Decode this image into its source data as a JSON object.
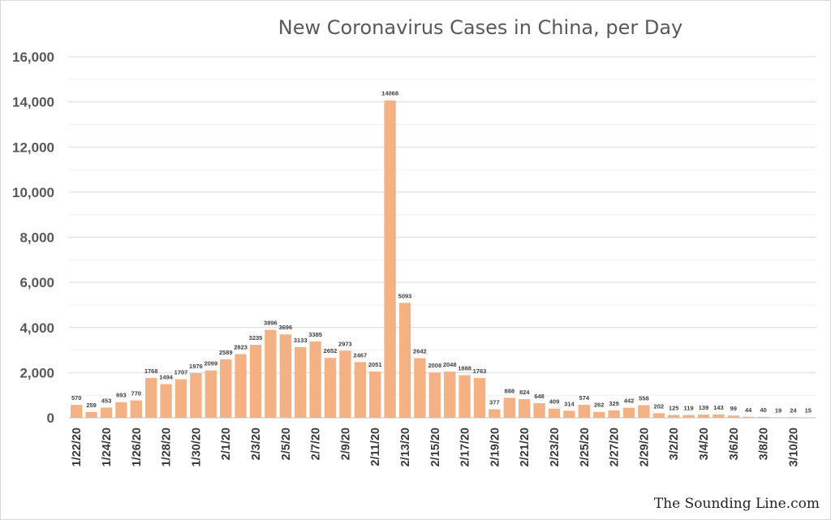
{
  "chart_data": {
    "type": "bar",
    "title": "New Coronavirus Cases in China, per Day",
    "xlabel": "",
    "ylabel": "",
    "ylim": [
      0,
      16000
    ],
    "yticks": [
      "0",
      "2,000",
      "4,000",
      "6,000",
      "8,000",
      "10,000",
      "12,000",
      "14,000",
      "16,000"
    ],
    "grid": true,
    "bar_color": "#f4b183",
    "categories": [
      "1/22/20",
      "1/23/20",
      "1/24/20",
      "1/25/20",
      "1/26/20",
      "1/27/20",
      "1/28/20",
      "1/29/20",
      "1/30/20",
      "1/31/20",
      "2/1/20",
      "2/2/20",
      "2/3/20",
      "2/4/20",
      "2/5/20",
      "2/6/20",
      "2/7/20",
      "2/8/20",
      "2/9/20",
      "2/10/20",
      "2/11/20",
      "2/12/20",
      "2/13/20",
      "2/14/20",
      "2/15/20",
      "2/16/20",
      "2/17/20",
      "2/18/20",
      "2/19/20",
      "2/20/20",
      "2/21/20",
      "2/22/20",
      "2/23/20",
      "2/24/20",
      "2/25/20",
      "2/26/20",
      "2/27/20",
      "2/28/20",
      "2/29/20",
      "3/1/20",
      "3/2/20",
      "3/3/20",
      "3/4/20",
      "3/5/20",
      "3/6/20",
      "3/7/20",
      "3/8/20",
      "3/9/20",
      "3/10/20",
      "3/11/20"
    ],
    "visible_tick_labels": [
      "1/22/20",
      "1/24/20",
      "1/26/20",
      "1/28/20",
      "1/30/20",
      "2/1/20",
      "2/3/20",
      "2/5/20",
      "2/7/20",
      "2/9/20",
      "2/11/20",
      "2/13/20",
      "2/15/20",
      "2/17/20",
      "2/19/20",
      "2/21/20",
      "2/23/20",
      "2/25/20",
      "2/27/20",
      "2/29/20",
      "3/2/20",
      "3/4/20",
      "3/6/20",
      "3/8/20",
      "3/10/20"
    ],
    "values": [
      570,
      259,
      453,
      693,
      770,
      1768,
      1494,
      1707,
      1976,
      2099,
      2589,
      2823,
      3235,
      3896,
      3696,
      3133,
      3385,
      2652,
      2973,
      2467,
      2051,
      14068,
      5093,
      2642,
      2008,
      2048,
      1888,
      1763,
      377,
      888,
      824,
      648,
      409,
      314,
      574,
      262,
      329,
      442,
      558,
      202,
      125,
      119,
      139,
      143,
      99,
      44,
      40,
      19,
      24,
      15
    ]
  },
  "watermark": "The Sounding Line.com"
}
